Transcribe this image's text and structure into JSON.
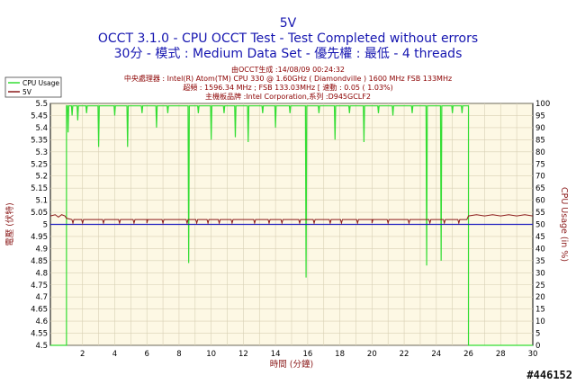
{
  "chart_data": {
    "type": "line",
    "title": "5V",
    "subtitle": "OCCT 3.1.0 - CPU OCCT Test - Test Completed without errors",
    "subtitle2": "30分 - 模式 : Medium Data Set - 優先權 : 最低 - 4 threads",
    "info_lines": [
      "由OCCT生成 :14/08/09 00:24:32",
      "中央處理器 : Intel(R) Atom(TM) CPU 330 @ 1.60GHz ( Diamondville ) 1600 MHz FSB 133MHz",
      "超頻 : 1596.34 MHz ; FSB 133.03MHz [ 速動 : 0.05 ( 1.03%)",
      "主機板品牌 :Intel Corporation,系列 :D945GCLF2"
    ],
    "xlabel": "時間 (分鐘)",
    "ylabel_left": "電壓 (伏特)",
    "ylabel_right": "CPU Usage (in %)",
    "xlim": [
      0,
      30
    ],
    "ylim_left": [
      4.5,
      5.5
    ],
    "ylim_right": [
      0,
      100
    ],
    "x_ticks": [
      "2",
      "4",
      "6",
      "8",
      "10",
      "12",
      "14",
      "16",
      "18",
      "20",
      "22",
      "24",
      "26",
      "28",
      "30"
    ],
    "y_ticks_left": [
      "5.5",
      "5.45",
      "5.4",
      "5.35",
      "5.3",
      "5.25",
      "5.2",
      "5.15",
      "5.1",
      "5.05",
      "5",
      "4.95",
      "4.9",
      "4.85",
      "4.8",
      "4.75",
      "4.7",
      "4.65",
      "4.6",
      "4.55",
      "4.5"
    ],
    "y_ticks_right": [
      "100",
      "95",
      "90",
      "85",
      "80",
      "75",
      "70",
      "65",
      "60",
      "55",
      "50",
      "45",
      "40",
      "35",
      "30",
      "25",
      "20",
      "15",
      "10",
      "5",
      "0"
    ],
    "grid": true,
    "legend_position": "top-left",
    "series": [
      {
        "name": "CPU Usage",
        "axis": "right",
        "color": "#33dd33",
        "baseline_start": 0,
        "active_range": [
          1.0,
          26.0
        ],
        "active_level": 99,
        "dips": [
          [
            1.1,
            88
          ],
          [
            1.35,
            95
          ],
          [
            1.7,
            93
          ],
          [
            2.25,
            96
          ],
          [
            3.0,
            82
          ],
          [
            4.0,
            95
          ],
          [
            4.8,
            82
          ],
          [
            5.7,
            96
          ],
          [
            6.6,
            90
          ],
          [
            7.3,
            96
          ],
          [
            8.6,
            34
          ],
          [
            9.2,
            96
          ],
          [
            10.0,
            85
          ],
          [
            10.8,
            96
          ],
          [
            11.5,
            86
          ],
          [
            12.3,
            84
          ],
          [
            13.2,
            96
          ],
          [
            14.0,
            90
          ],
          [
            14.9,
            96
          ],
          [
            15.9,
            28
          ],
          [
            16.7,
            96
          ],
          [
            17.7,
            85
          ],
          [
            18.6,
            96
          ],
          [
            19.5,
            84
          ],
          [
            20.4,
            96
          ],
          [
            21.3,
            95
          ],
          [
            22.5,
            96
          ],
          [
            23.4,
            33
          ],
          [
            24.3,
            35
          ],
          [
            25.0,
            96
          ],
          [
            25.6,
            96
          ]
        ]
      },
      {
        "name": "5V",
        "axis": "left",
        "color": "#8b1a1a",
        "points": [
          [
            0,
            5.035
          ],
          [
            0.3,
            5.04
          ],
          [
            0.5,
            5.03
          ],
          [
            0.7,
            5.04
          ],
          [
            0.9,
            5.035
          ],
          [
            1.0,
            5.025
          ],
          [
            1.5,
            5.02
          ],
          [
            2.5,
            5.02
          ],
          [
            4.0,
            5.02
          ],
          [
            6.0,
            5.02
          ],
          [
            8.0,
            5.02
          ],
          [
            10.0,
            5.02
          ],
          [
            12.0,
            5.02
          ],
          [
            14.0,
            5.02
          ],
          [
            16.0,
            5.02
          ],
          [
            18.0,
            5.02
          ],
          [
            20.0,
            5.02
          ],
          [
            22.0,
            5.02
          ],
          [
            24.0,
            5.02
          ],
          [
            25.9,
            5.02
          ],
          [
            26.0,
            5.035
          ],
          [
            26.5,
            5.04
          ],
          [
            27.0,
            5.035
          ],
          [
            27.5,
            5.04
          ],
          [
            28.0,
            5.035
          ],
          [
            28.5,
            5.04
          ],
          [
            29.0,
            5.035
          ],
          [
            29.5,
            5.04
          ],
          [
            30.0,
            5.035
          ]
        ],
        "dips_x": [
          1.4,
          2.0,
          3.3,
          4.3,
          5.2,
          6.0,
          7.0,
          8.5,
          9.1,
          9.8,
          10.5,
          11.3,
          12.7,
          13.6,
          14.4,
          15.5,
          16.4,
          17.4,
          18.1,
          19.1,
          20.0,
          21.0,
          22.3,
          23.6,
          24.5,
          25.4
        ],
        "dip_level": 5.005
      }
    ],
    "reference_line": {
      "axis": "left",
      "value": 5.0,
      "color": "#2020c0"
    }
  },
  "watermark": "#446152"
}
